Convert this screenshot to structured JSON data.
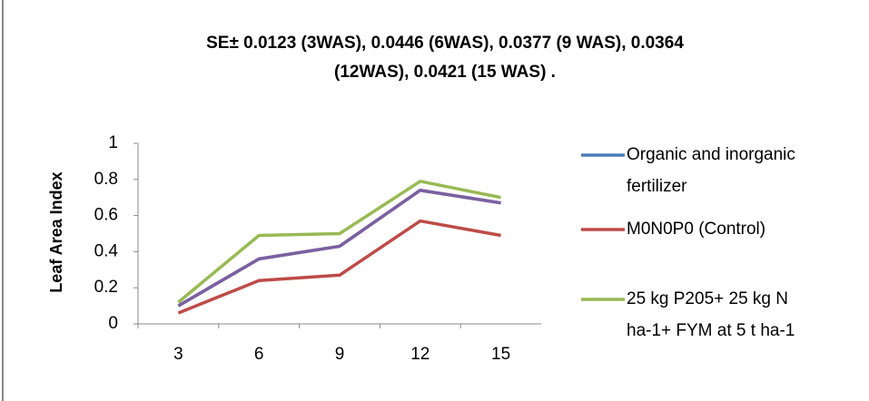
{
  "chart_data": {
    "type": "line",
    "title": [
      "SE± 0.0123 (3WAS),  0.0446 (6WAS),  0.0377 (9 WAS),  0.0364",
      "(12WAS), 0.0421 (15 WAS) ."
    ],
    "y_label": "Leaf Area Index",
    "categories": [
      "3",
      "6",
      "9",
      "12",
      "15"
    ],
    "series": [
      {
        "name": [
          "Organic and inorganic",
          "fertilizer"
        ],
        "color": "#4a7ebb",
        "values": [
          0.1,
          0.36,
          0.43,
          0.74,
          0.67
        ]
      },
      {
        "name": [
          "M0N0P0 (Control)"
        ],
        "color": "#be4b48",
        "values": [
          0.06,
          0.24,
          0.27,
          0.57,
          0.49
        ]
      },
      {
        "name": [
          "25 kg P205+ 25 kg N",
          "ha-1+ FYM at 5 t ha-1"
        ],
        "color": "#98b954",
        "values": [
          0.12,
          0.49,
          0.5,
          0.79,
          0.7
        ]
      },
      {
        "color": "#7d60a0",
        "values": [
          0.1,
          0.36,
          0.43,
          0.74,
          0.67
        ]
      }
    ],
    "ylim": [
      0,
      1
    ],
    "yticks": [
      0,
      0.2,
      0.4,
      0.6,
      0.8,
      1
    ],
    "grid": false
  }
}
